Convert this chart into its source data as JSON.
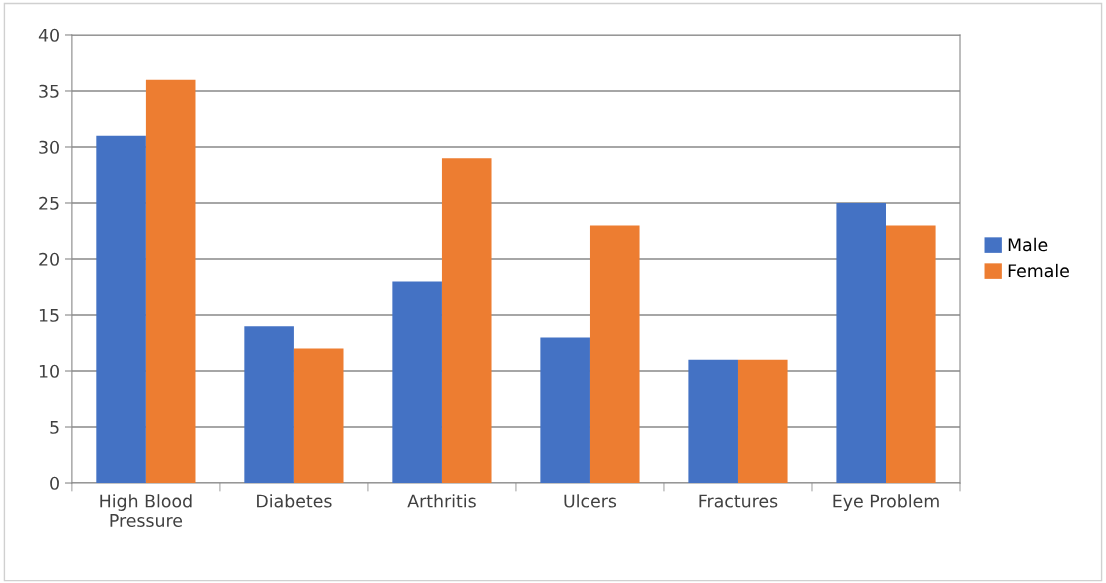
{
  "chart_data": {
    "type": "bar",
    "categories": [
      "High Blood\nPressure",
      "Diabetes",
      "Arthritis",
      "Ulcers",
      "Fractures",
      "Eye Problem"
    ],
    "series": [
      {
        "name": "Male",
        "color": "#4472c4",
        "values": [
          31,
          14,
          18,
          13,
          11,
          25
        ]
      },
      {
        "name": "Female",
        "color": "#ed7d31",
        "values": [
          36,
          12,
          29,
          23,
          11,
          23
        ]
      }
    ],
    "ylim": [
      0,
      40
    ],
    "yticks": [
      0,
      5,
      10,
      15,
      20,
      25,
      30,
      35,
      40
    ],
    "grid": "y",
    "legend": "right"
  }
}
